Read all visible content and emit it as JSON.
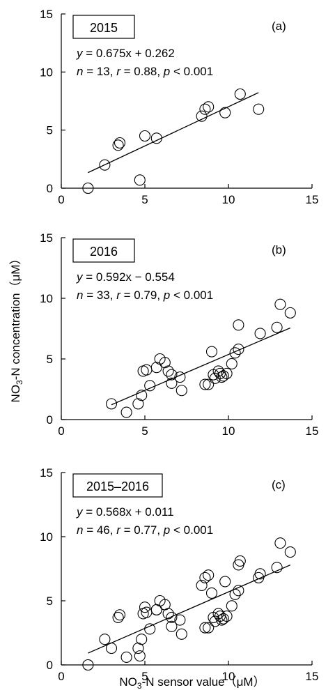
{
  "y_axis_label": "NO3-N concentration（μM）",
  "x_axis_label": "NO3-N sensor value（μM）",
  "chart_data": [
    {
      "type": "scatter",
      "panel": "(a)",
      "year_label": "2015",
      "equation": "y = 0.675x + 0.262",
      "stats": "n = 13, r = 0.88, p < 0.001",
      "xlim": [
        0,
        15
      ],
      "ylim": [
        0,
        15
      ],
      "xticks": [
        0,
        5,
        10,
        15
      ],
      "yticks": [
        0,
        5,
        10,
        15
      ],
      "points": [
        [
          1.6,
          0.0
        ],
        [
          2.6,
          2.0
        ],
        [
          3.4,
          3.7
        ],
        [
          3.5,
          3.9
        ],
        [
          4.7,
          0.7
        ],
        [
          5.0,
          4.5
        ],
        [
          5.7,
          4.3
        ],
        [
          8.4,
          6.2
        ],
        [
          8.6,
          6.8
        ],
        [
          8.8,
          7.0
        ],
        [
          9.8,
          6.5
        ],
        [
          10.7,
          8.1
        ],
        [
          11.8,
          6.8
        ]
      ],
      "fit": {
        "slope": 0.675,
        "intercept": 0.262,
        "x_range": [
          1.6,
          11.8
        ]
      }
    },
    {
      "type": "scatter",
      "panel": "(b)",
      "year_label": "2016",
      "equation": "y = 0.592x − 0.554",
      "stats": "n = 33, r = 0.79, p < 0.001",
      "xlim": [
        0,
        15
      ],
      "ylim": [
        0,
        15
      ],
      "xticks": [
        0,
        5,
        10,
        15
      ],
      "yticks": [
        0,
        5,
        10,
        15
      ],
      "points": [
        [
          3.0,
          1.3
        ],
        [
          3.9,
          0.6
        ],
        [
          4.6,
          1.3
        ],
        [
          4.8,
          2.0
        ],
        [
          4.9,
          4.0
        ],
        [
          5.1,
          4.1
        ],
        [
          5.3,
          2.8
        ],
        [
          5.7,
          4.3
        ],
        [
          5.9,
          5.0
        ],
        [
          6.2,
          4.7
        ],
        [
          6.4,
          4.0
        ],
        [
          6.6,
          3.7
        ],
        [
          6.6,
          3.0
        ],
        [
          7.1,
          3.5
        ],
        [
          7.2,
          2.4
        ],
        [
          8.6,
          2.9
        ],
        [
          8.8,
          2.9
        ],
        [
          9.0,
          5.6
        ],
        [
          9.1,
          3.7
        ],
        [
          9.2,
          3.4
        ],
        [
          9.4,
          4.0
        ],
        [
          9.5,
          3.8
        ],
        [
          9.6,
          3.5
        ],
        [
          9.7,
          3.6
        ],
        [
          9.9,
          3.8
        ],
        [
          10.2,
          4.6
        ],
        [
          10.4,
          5.5
        ],
        [
          10.6,
          5.8
        ],
        [
          10.6,
          7.8
        ],
        [
          11.9,
          7.1
        ],
        [
          12.9,
          7.6
        ],
        [
          13.1,
          9.5
        ],
        [
          13.7,
          8.8
        ]
      ],
      "fit": {
        "slope": 0.592,
        "intercept": -0.554,
        "x_range": [
          3.0,
          13.7
        ]
      }
    },
    {
      "type": "scatter",
      "panel": "(c)",
      "year_label": "2015–2016",
      "equation": "y = 0.568x + 0.011",
      "stats": "n = 46, r = 0.77, p < 0.001",
      "xlim": [
        0,
        15
      ],
      "ylim": [
        0,
        15
      ],
      "xticks": [
        0,
        5,
        10,
        15
      ],
      "yticks": [
        0,
        5,
        10,
        15
      ],
      "points": [
        [
          1.6,
          0.0
        ],
        [
          2.6,
          2.0
        ],
        [
          3.4,
          3.7
        ],
        [
          3.5,
          3.9
        ],
        [
          4.7,
          0.7
        ],
        [
          5.0,
          4.5
        ],
        [
          5.7,
          4.3
        ],
        [
          8.4,
          6.2
        ],
        [
          8.6,
          6.8
        ],
        [
          8.8,
          7.0
        ],
        [
          9.8,
          6.5
        ],
        [
          10.7,
          8.1
        ],
        [
          11.8,
          6.8
        ],
        [
          3.0,
          1.3
        ],
        [
          3.9,
          0.6
        ],
        [
          4.6,
          1.3
        ],
        [
          4.8,
          2.0
        ],
        [
          4.9,
          4.0
        ],
        [
          5.1,
          4.1
        ],
        [
          5.3,
          2.8
        ],
        [
          5.7,
          4.3
        ],
        [
          5.9,
          5.0
        ],
        [
          6.2,
          4.7
        ],
        [
          6.4,
          4.0
        ],
        [
          6.6,
          3.7
        ],
        [
          6.6,
          3.0
        ],
        [
          7.1,
          3.5
        ],
        [
          7.2,
          2.4
        ],
        [
          8.6,
          2.9
        ],
        [
          8.8,
          2.9
        ],
        [
          9.0,
          5.6
        ],
        [
          9.1,
          3.7
        ],
        [
          9.2,
          3.4
        ],
        [
          9.4,
          4.0
        ],
        [
          9.5,
          3.8
        ],
        [
          9.6,
          3.5
        ],
        [
          9.7,
          3.6
        ],
        [
          9.9,
          3.8
        ],
        [
          10.2,
          4.6
        ],
        [
          10.4,
          5.5
        ],
        [
          10.6,
          5.8
        ],
        [
          10.6,
          7.8
        ],
        [
          11.9,
          7.1
        ],
        [
          12.9,
          7.6
        ],
        [
          13.1,
          9.5
        ],
        [
          13.7,
          8.8
        ]
      ],
      "fit": {
        "slope": 0.568,
        "intercept": 0.011,
        "x_range": [
          1.6,
          13.7
        ]
      }
    }
  ]
}
